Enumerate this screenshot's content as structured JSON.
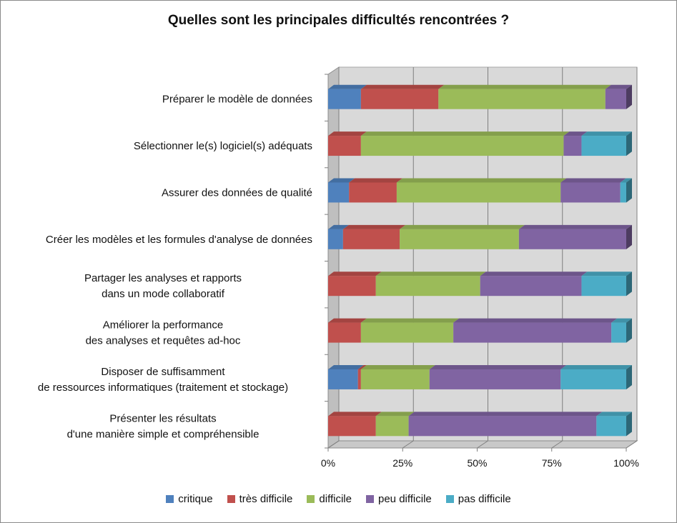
{
  "chart_data": {
    "type": "bar",
    "orientation": "horizontal-stacked-percent",
    "title": "Quelles sont les principales difficultés rencontrées ?",
    "categories": [
      [
        "Préparer le modèle de données"
      ],
      [
        "Sélectionner le(s) logiciel(s) adéquats"
      ],
      [
        "Assurer des données de qualité"
      ],
      [
        "Créer les modèles et les formules d'analyse de données"
      ],
      [
        "Partager les analyses et rapports",
        "dans un mode collaboratif"
      ],
      [
        "Améliorer la performance",
        "des analyses et requêtes ad-hoc"
      ],
      [
        "Disposer de suffisamment",
        "de ressources informatiques (traitement et stockage)"
      ],
      [
        "Présenter les résultats",
        "d'une manière simple et compréhensible"
      ]
    ],
    "series": [
      {
        "name": "critique",
        "color": "#4f81bd",
        "values": [
          11,
          0,
          7,
          5,
          0,
          0,
          10,
          0
        ]
      },
      {
        "name": "très difficile",
        "color": "#c0504d",
        "values": [
          26,
          11,
          16,
          19,
          16,
          11,
          1,
          16
        ]
      },
      {
        "name": "difficile",
        "color": "#9bbb59",
        "values": [
          56,
          68,
          55,
          40,
          35,
          31,
          23,
          11
        ]
      },
      {
        "name": "peu difficile",
        "color": "#8064a2",
        "values": [
          7,
          6,
          20,
          36,
          34,
          53,
          44,
          63
        ]
      },
      {
        "name": "pas difficile",
        "color": "#4bacc6",
        "values": [
          0,
          15,
          2,
          0,
          15,
          5,
          22,
          10
        ]
      }
    ],
    "x_ticks": [
      "0%",
      "25%",
      "50%",
      "75%",
      "100%"
    ],
    "xlim": [
      0,
      100
    ],
    "grid": true,
    "legend_position": "bottom"
  }
}
